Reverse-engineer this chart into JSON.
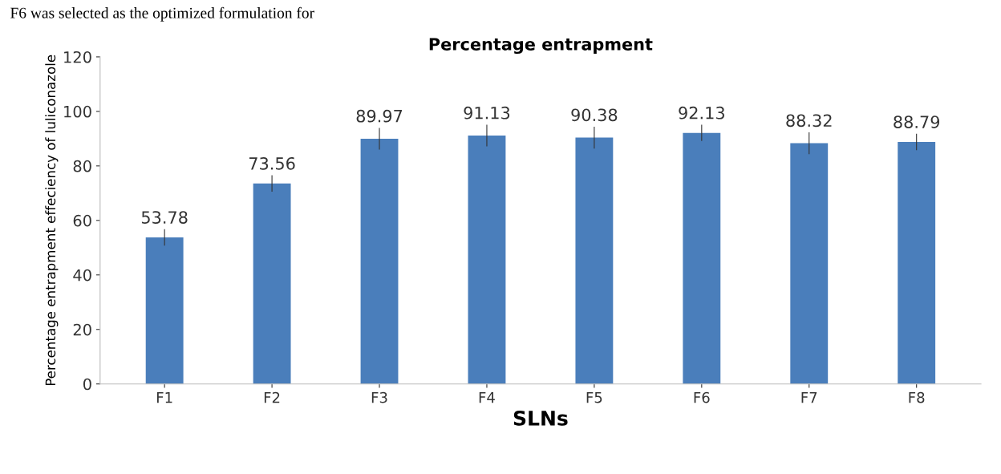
{
  "chart_data": {
    "type": "bar",
    "title": "Percentage entrapment",
    "xlabel": "SLNs",
    "ylabel": "Percentage entrapment effeciency of luliconazole",
    "annotations": [
      "F6 was selected as the optimized formulation for"
    ],
    "categories": [
      "F1",
      "F2",
      "F3",
      "F4",
      "F5",
      "F6",
      "F7",
      "F8"
    ],
    "values": [
      53.78,
      73.56,
      89.97,
      91.13,
      90.38,
      92.13,
      88.32,
      88.79
    ],
    "errors": [
      3,
      3,
      4,
      4,
      4,
      3,
      4,
      3
    ],
    "color": "#4a7ebb",
    "data_labels": true,
    "ylim": [
      0,
      120
    ],
    "yticks": [
      0,
      20,
      40,
      60,
      80,
      100,
      120
    ],
    "grid": false,
    "legend": false
  }
}
